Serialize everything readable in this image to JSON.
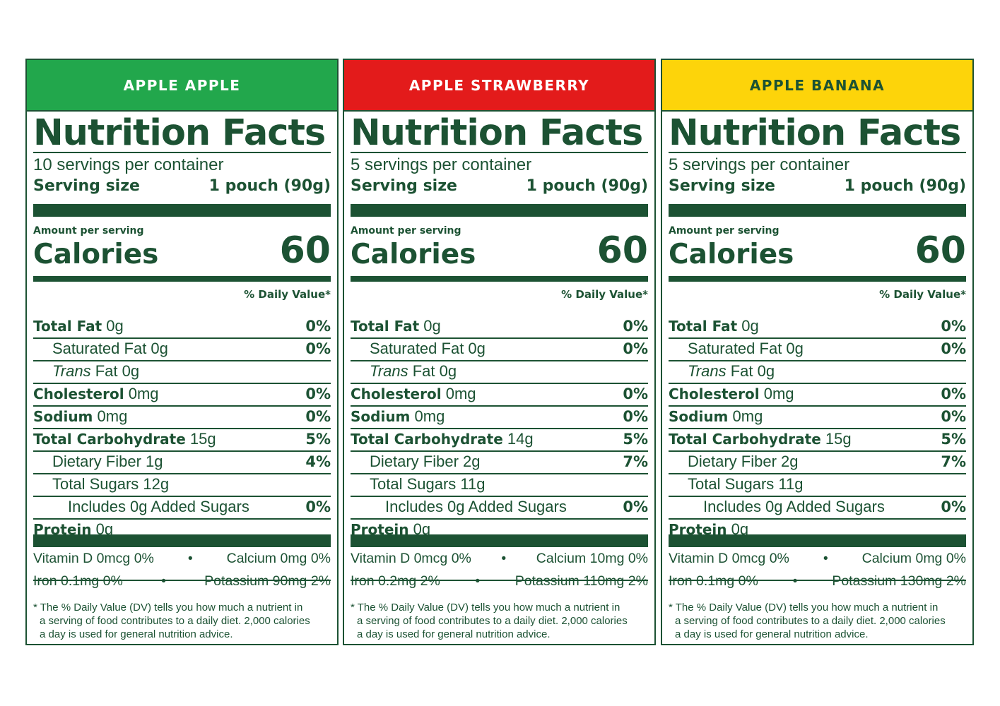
{
  "colors": {
    "ink": "#1c5233",
    "green": "#22a74c",
    "red": "#e31b1b",
    "yellow": "#fdd40a"
  },
  "panels": [
    {
      "band": "APPLE APPLE",
      "band_color": "#22a74c",
      "band_text_color": "#ffffff",
      "title": "Nutrition Facts",
      "servings": "10 servings per container",
      "serving_size_label": "Serving size",
      "serving_size_value": "1 pouch (90g)",
      "amount_label": "Amount per serving",
      "calories_label": "Calories",
      "calories_value": "60",
      "dv_header": "% Daily Value*",
      "rows": [
        {
          "label": "Total Fat",
          "amount": "0g",
          "pct": "0%"
        },
        {
          "label": "Saturated Fat 0g",
          "amount": "",
          "pct": "0%"
        },
        {
          "label_italic": "Trans",
          "label": "Fat 0g",
          "amount": "",
          "pct": ""
        },
        {
          "label": "Cholesterol",
          "amount": "0mg",
          "pct": "0%"
        },
        {
          "label": "Sodium",
          "amount": "0mg",
          "pct": "0%"
        },
        {
          "label": "Total Carbohydrate",
          "amount": "15g",
          "pct": "5%"
        },
        {
          "label": "Dietary Fiber 1g",
          "amount": "",
          "pct": "4%"
        },
        {
          "label": "Total Sugars 12g",
          "amount": "",
          "pct": ""
        },
        {
          "label": "Includes 0g Added Sugars",
          "amount": "",
          "pct": "0%"
        },
        {
          "label": "Protein",
          "amount": "0g",
          "pct": ""
        }
      ],
      "vitamins": [
        {
          "left": "Vitamin D 0mcg 0%",
          "bullet": "•",
          "right": "Calcium 0mg 0%"
        },
        {
          "left": "Iron 0.1mg 0%",
          "bullet": "•",
          "right": "Potassium 90mg 2%"
        }
      ],
      "footnote": [
        "* The % Daily Value (DV) tells you how much a nutrient in",
        "a serving of food contributes to a daily diet. 2,000 calories",
        "a day is used for general nutrition advice."
      ]
    },
    {
      "band": "APPLE STRAWBERRY",
      "band_color": "#e31b1b",
      "band_text_color": "#ffffff",
      "title": "Nutrition Facts",
      "servings": "5 servings per container",
      "serving_size_label": "Serving size",
      "serving_size_value": "1 pouch (90g)",
      "amount_label": "Amount per serving",
      "calories_label": "Calories",
      "calories_value": "60",
      "dv_header": "% Daily Value*",
      "rows": [
        {
          "label": "Total Fat",
          "amount": "0g",
          "pct": "0%"
        },
        {
          "label": "Saturated Fat 0g",
          "amount": "",
          "pct": "0%"
        },
        {
          "label_italic": "Trans",
          "label": "Fat 0g",
          "amount": "",
          "pct": ""
        },
        {
          "label": "Cholesterol",
          "amount": "0mg",
          "pct": "0%"
        },
        {
          "label": "Sodium",
          "amount": "0mg",
          "pct": "0%"
        },
        {
          "label": "Total Carbohydrate",
          "amount": "14g",
          "pct": "5%"
        },
        {
          "label": "Dietary Fiber 2g",
          "amount": "",
          "pct": "7%"
        },
        {
          "label": "Total Sugars 11g",
          "amount": "",
          "pct": ""
        },
        {
          "label": "Includes 0g Added Sugars",
          "amount": "",
          "pct": "0%"
        },
        {
          "label": "Protein",
          "amount": "0g",
          "pct": ""
        }
      ],
      "vitamins": [
        {
          "left": "Vitamin D 0mcg 0%",
          "bullet": "•",
          "right": "Calcium 10mg 0%"
        },
        {
          "left": "Iron 0.2mg 2%",
          "bullet": "•",
          "right": "Potassium 110mg 2%"
        }
      ],
      "footnote": [
        "* The % Daily Value (DV) tells you how much a nutrient in",
        "a serving of food contributes to a daily diet. 2,000 calories",
        "a day is used for general nutrition advice."
      ]
    },
    {
      "band": "APPLE BANANA",
      "band_color": "#fdd40a",
      "band_text_color": "#1c5233",
      "title": "Nutrition Facts",
      "servings": "5 servings per container",
      "serving_size_label": "Serving size",
      "serving_size_value": "1 pouch (90g)",
      "amount_label": "Amount per serving",
      "calories_label": "Calories",
      "calories_value": "60",
      "dv_header": "% Daily Value*",
      "rows": [
        {
          "label": "Total Fat",
          "amount": "0g",
          "pct": "0%"
        },
        {
          "label": "Saturated Fat 0g",
          "amount": "",
          "pct": "0%"
        },
        {
          "label_italic": "Trans",
          "label": "Fat 0g",
          "amount": "",
          "pct": ""
        },
        {
          "label": "Cholesterol",
          "amount": "0mg",
          "pct": "0%"
        },
        {
          "label": "Sodium",
          "amount": "0mg",
          "pct": "0%"
        },
        {
          "label": "Total Carbohydrate",
          "amount": "15g",
          "pct": "5%"
        },
        {
          "label": "Dietary Fiber 2g",
          "amount": "",
          "pct": "7%"
        },
        {
          "label": "Total Sugars 11g",
          "amount": "",
          "pct": ""
        },
        {
          "label": "Includes 0g Added Sugars",
          "amount": "",
          "pct": "0%"
        },
        {
          "label": "Protein",
          "amount": "0g",
          "pct": ""
        }
      ],
      "vitamins": [
        {
          "left": "Vitamin D 0mcg 0%",
          "bullet": "•",
          "right": "Calcium 0mg 0%"
        },
        {
          "left": "Iron 0.1mg 0%",
          "bullet": "•",
          "right": "Potassium 130mg 2%"
        }
      ],
      "footnote": [
        "* The % Daily Value (DV) tells you how much a nutrient in",
        "a serving of food contributes to a daily diet. 2,000 calories",
        "a day is used for general nutrition advice."
      ]
    }
  ]
}
